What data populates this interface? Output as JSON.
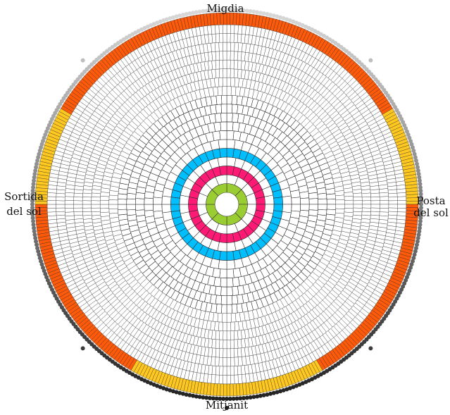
{
  "labels": {
    "top": "Migdia",
    "bottom": "Mitjanit",
    "left_line1": "Sortida",
    "left_line2": "del sol",
    "right_line1": "Posta",
    "right_line2": "del sol"
  },
  "rings": [
    {
      "cells": 8,
      "fill": "#9ACD32"
    },
    {
      "cells": 16,
      "fill": "#ffffff"
    },
    {
      "cells": 32,
      "fill": "#FF1A75"
    },
    {
      "cells": 32,
      "fill": "#ffffff"
    },
    {
      "cells": 48,
      "fill": "#00BFFF"
    },
    {
      "cells": 48,
      "fill": "#ffffff"
    },
    {
      "cells": 64,
      "fill": "#ffffff"
    },
    {
      "cells": 80,
      "fill": "#ffffff"
    },
    {
      "cells": 96,
      "fill": "#ffffff"
    },
    {
      "cells": 112,
      "fill": "#ffffff"
    },
    {
      "cells": 128,
      "fill": "#ffffff"
    },
    {
      "cells": 160,
      "fill": "#ffffff"
    },
    {
      "cells": 192,
      "fill": "#ffffff"
    },
    {
      "cells": 224,
      "fill": "#ffffff"
    },
    {
      "cells": 240,
      "fill": "#ffffff"
    },
    {
      "cells": 256,
      "fill": "#ffffff"
    },
    {
      "cells": 256,
      "fill": "#ffffff"
    },
    {
      "cells": 288,
      "fill": "#ffffff"
    },
    {
      "cells": 288,
      "fill": "#ffffff"
    }
  ],
  "outer_band": {
    "cells": 360,
    "segments": [
      {
        "from_deg": -60,
        "to_deg": 60,
        "fill": "#FF5A0A"
      },
      {
        "from_deg": 60,
        "to_deg": 90,
        "fill": "#FFC820"
      },
      {
        "from_deg": 90,
        "to_deg": 150,
        "fill": "#FF5A0A"
      },
      {
        "from_deg": 150,
        "to_deg": 210,
        "fill": "#FFC820"
      },
      {
        "from_deg": 210,
        "to_deg": 270,
        "fill": "#FF5A0A"
      },
      {
        "from_deg": 270,
        "to_deg": 300,
        "fill": "#FFC820"
      }
    ]
  },
  "outer_dots": {
    "count": 360,
    "light_color": "#d9d9d9",
    "dark_color": "#222222",
    "markers_deg": [
      -45,
      45,
      135,
      180,
      225
    ]
  }
}
